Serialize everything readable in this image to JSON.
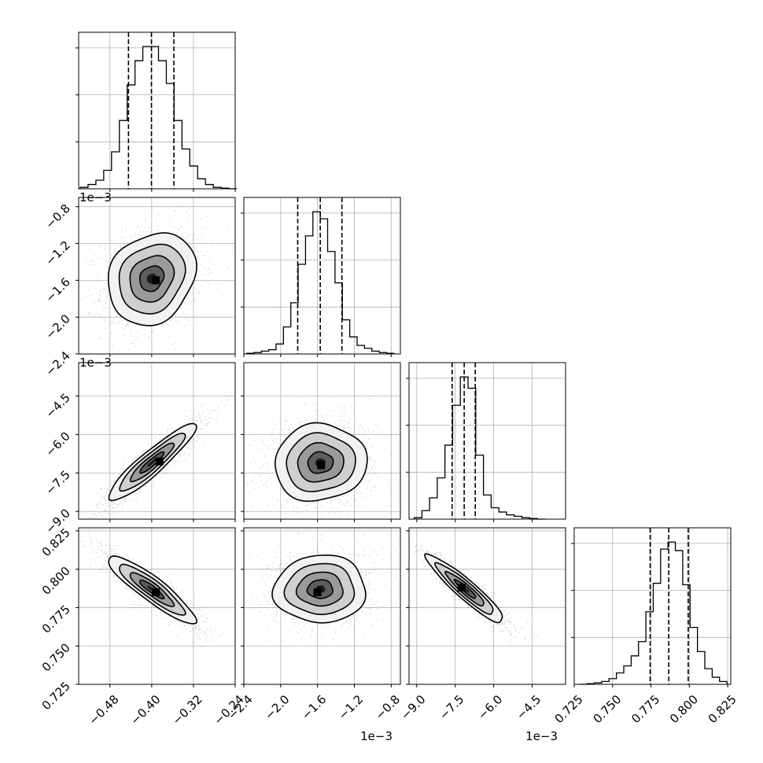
{
  "chart_data": {
    "type": "corner",
    "title": "",
    "n_params": 4,
    "grid": true,
    "colors": {
      "ink": "#000000",
      "grid": "#b0b0b0",
      "scatter": "#7f7f7f",
      "background": "#ffffff"
    },
    "params": [
      {
        "index": 0,
        "label": "",
        "range": [
          -0.54,
          -0.24
        ],
        "ticks": [
          -0.48,
          -0.4,
          -0.32,
          -0.24
        ],
        "tick_labels": [
          "−0.48",
          "−0.40",
          "−0.32",
          "−0.24"
        ],
        "offset_text": "",
        "y_offset_text": ""
      },
      {
        "index": 1,
        "label": "",
        "range": [
          -2.4,
          -0.7
        ],
        "ticks": [
          -2.4,
          -2.0,
          -1.6,
          -1.2,
          -0.8
        ],
        "tick_labels": [
          "−2.4",
          "−2.0",
          "−1.6",
          "−1.2",
          "−0.8"
        ],
        "offset_text": "1e−3",
        "y_offset_text": "1e−3"
      },
      {
        "index": 2,
        "label": "",
        "range": [
          -9.3,
          -3.2
        ],
        "ticks": [
          -9.0,
          -7.5,
          -6.0,
          -4.5
        ],
        "tick_labels": [
          "−9.0",
          "−7.5",
          "−6.0",
          "−4.5"
        ],
        "offset_text": "1e−3",
        "y_offset_text": "1e−3"
      },
      {
        "index": 3,
        "label": "",
        "range": [
          0.725,
          0.827
        ],
        "ticks": [
          0.725,
          0.75,
          0.775,
          0.8,
          0.825
        ],
        "tick_labels": [
          "0.725",
          "0.750",
          "0.775",
          "0.800",
          "0.825"
        ],
        "offset_text": "",
        "y_offset_text": ""
      }
    ],
    "histograms": [
      {
        "param": 0,
        "bins": [
          -0.537,
          -0.522,
          -0.507,
          -0.492,
          -0.477,
          -0.462,
          -0.447,
          -0.432,
          -0.417,
          -0.402,
          -0.387,
          -0.372,
          -0.357,
          -0.342,
          -0.327,
          -0.312,
          -0.297,
          -0.282,
          -0.267,
          -0.252
        ],
        "counts": [
          1,
          3,
          6,
          13,
          26,
          48,
          73,
          90,
          100,
          100,
          90,
          74,
          48,
          28,
          16,
          7,
          3,
          1,
          0.5,
          0
        ],
        "quantiles": [
          -0.4445,
          -0.4005,
          -0.3575
        ]
      },
      {
        "param": 1,
        "bins": [
          -2.37,
          -2.29,
          -2.21,
          -2.13,
          -2.05,
          -1.97,
          -1.89,
          -1.81,
          -1.73,
          -1.65,
          -1.57,
          -1.49,
          -1.41,
          -1.33,
          -1.25,
          -1.17,
          -1.09,
          -1.01,
          -0.93,
          -0.85
        ],
        "counts": [
          0.5,
          1,
          2,
          3,
          7,
          19,
          36,
          63,
          83,
          100,
          95,
          72,
          50,
          24,
          12,
          6,
          4,
          2,
          1,
          0.5
        ],
        "quantiles": [
          -1.815,
          -1.57,
          -1.335
        ]
      },
      {
        "param": 2,
        "bins": [
          -9.1,
          -8.8,
          -8.5,
          -8.2,
          -7.9,
          -7.6,
          -7.3,
          -7.0,
          -6.7,
          -6.4,
          -6.1,
          -5.8,
          -5.5,
          -5.2,
          -4.9,
          -4.6,
          -4.3
        ],
        "counts": [
          1,
          6,
          15,
          29,
          52,
          80,
          100,
          92,
          45,
          17,
          8,
          5,
          3,
          2,
          1,
          0.5,
          0
        ],
        "quantiles": [
          -7.62,
          -7.15,
          -6.72
        ]
      },
      {
        "param": 3,
        "bins": [
          0.7285,
          0.7333,
          0.7381,
          0.7429,
          0.7477,
          0.7525,
          0.7573,
          0.7621,
          0.7669,
          0.7717,
          0.7765,
          0.7813,
          0.7861,
          0.7909,
          0.7957,
          0.8005,
          0.8053,
          0.8101,
          0.8149,
          0.8197
        ],
        "counts": [
          0,
          0.5,
          1,
          2,
          4,
          8,
          13,
          20,
          30,
          51,
          71,
          95,
          100,
          94,
          70,
          40,
          23,
          11,
          5,
          2
        ],
        "quantiles": [
          0.7745,
          0.7866,
          0.7993
        ]
      }
    ],
    "pairs": [
      {
        "x": 0,
        "y": 1,
        "mean": [
          -0.4,
          -0.00158
        ],
        "std": [
          0.042,
          0.00025
        ],
        "corr": 0.18,
        "peak": [
          -0.392,
          -0.0016
        ]
      },
      {
        "x": 0,
        "y": 2,
        "mean": [
          -0.4,
          -0.0071
        ],
        "std": [
          0.042,
          0.00075
        ],
        "corr": 0.92,
        "peak": [
          -0.385,
          -0.00705
        ]
      },
      {
        "x": 1,
        "y": 2,
        "mean": [
          -0.00157,
          -0.0071
        ],
        "std": [
          0.00025,
          0.00075
        ],
        "corr": 0.05,
        "peak": [
          -0.00156,
          -0.0072
        ]
      },
      {
        "x": 0,
        "y": 3,
        "mean": [
          -0.4,
          0.787
        ],
        "std": [
          0.042,
          0.011
        ],
        "corr": -0.9,
        "peak": [
          -0.392,
          0.785
        ]
      },
      {
        "x": 1,
        "y": 3,
        "mean": [
          -0.00157,
          0.787
        ],
        "std": [
          0.00025,
          0.011
        ],
        "corr": 0.02,
        "peak": [
          -0.0016,
          0.785
        ]
      },
      {
        "x": 2,
        "y": 3,
        "mean": [
          -0.0071,
          0.787
        ],
        "std": [
          0.00075,
          0.011
        ],
        "corr": -0.93,
        "peak": [
          -0.00725,
          0.788
        ]
      }
    ]
  }
}
